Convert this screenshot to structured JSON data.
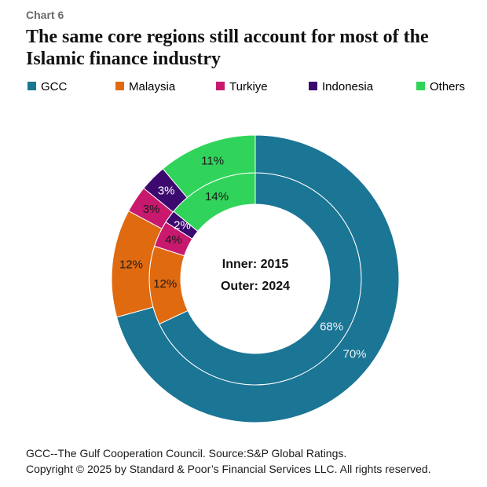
{
  "chart_data": {
    "type": "donut",
    "label": "Chart 6",
    "title": "The same core regions still account for most of the Islamic finance industry",
    "categories": [
      "GCC",
      "Malaysia",
      "Turkiye",
      "Indonesia",
      "Others"
    ],
    "colors": [
      "#1b7595",
      "#e06a10",
      "#c8196e",
      "#3c0a6e",
      "#30d45a"
    ],
    "label_colors": [
      "#e8f1f5",
      "#1a1a1a",
      "#1a1a1a",
      "#ffffff",
      "#1a1a1a"
    ],
    "center_labels": [
      "Inner: 2015",
      "Outer: 2024"
    ],
    "series": [
      {
        "values": [
          68,
          12,
          4,
          2,
          14
        ],
        "value_labels": [
          "68%",
          "12%",
          "4%",
          "2%",
          "14%"
        ]
      },
      {
        "values": [
          70,
          12,
          3,
          3,
          11
        ],
        "value_labels": [
          "70%",
          "12%",
          "3%",
          "3%",
          "11%"
        ]
      }
    ],
    "notes": [
      "GCC--The Gulf Cooperation Council. Source:S&P Global Ratings.",
      "Copyright © 2025 by Standard & Poor’s Financial Services LLC. All rights reserved."
    ]
  }
}
